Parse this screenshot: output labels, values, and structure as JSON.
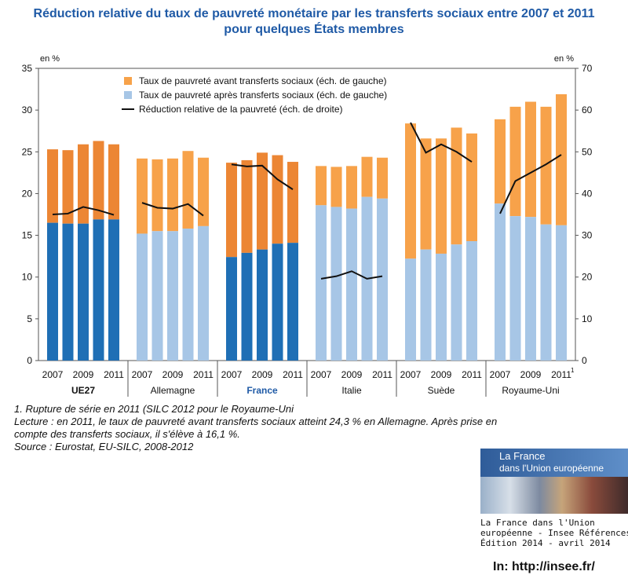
{
  "chart_data": {
    "type": "bar+line",
    "title_line1": "Réduction relative du taux de pauvreté monétaire par les transferts sociaux entre 2007 et 2011",
    "title_line2": "pour quelques États membres",
    "y_left_unit": "en %",
    "y_right_unit": "en %",
    "y_left_range": [
      0,
      35
    ],
    "y_right_range": [
      0,
      70
    ],
    "y_left_ticks": [
      "0",
      "5",
      "10",
      "15",
      "20",
      "25",
      "30",
      "35"
    ],
    "y_right_ticks": [
      "0",
      "10",
      "20",
      "30",
      "40",
      "50",
      "60",
      "70"
    ],
    "grid": false,
    "legend_position": "top-left",
    "legend": [
      {
        "label": "Taux de pauvreté avant transferts sociaux (éch. de gauche)",
        "color": "#f7a24a"
      },
      {
        "label": "Taux de pauvreté après transferts sociaux (éch. de gauche)",
        "color": "#a7c6e6"
      },
      {
        "label": "Réduction relative de la pauvreté (éch. de droite)",
        "color": "#111111"
      }
    ],
    "years": [
      "2007",
      "2008",
      "2009",
      "2010",
      "2011"
    ],
    "tick_years": [
      "2007",
      "2009",
      "2011"
    ],
    "groups": [
      {
        "name": "UE27",
        "before": [
          25.3,
          25.2,
          25.9,
          26.3,
          25.9
        ],
        "after": [
          16.5,
          16.4,
          16.4,
          16.9,
          16.9
        ],
        "reduction": [
          35,
          35.2,
          36.8,
          36,
          34.9
        ],
        "before_color": "#ec8634",
        "after_color": "#1f6fb5",
        "bold": true,
        "label_color": "#111111"
      },
      {
        "name": "Allemagne",
        "before": [
          24.2,
          24.1,
          24.2,
          25.1,
          24.3
        ],
        "after": [
          15.2,
          15.5,
          15.5,
          15.8,
          16.1
        ],
        "reduction": [
          37.8,
          36.6,
          36.4,
          37.5,
          34.7
        ],
        "before_color": "#f7a24a",
        "after_color": "#a7c6e6",
        "bold": false,
        "label_color": "#111111"
      },
      {
        "name": "France",
        "before": [
          23.7,
          24,
          24.9,
          24.6,
          23.8
        ],
        "after": [
          12.4,
          12.9,
          13.3,
          14,
          14.1
        ],
        "reduction": [
          47,
          46.5,
          46.7,
          43.4,
          41
        ],
        "before_color": "#ec8634",
        "after_color": "#1f6fb5",
        "bold": true,
        "label_color": "#1f5aa6"
      },
      {
        "name": "Italie",
        "before": [
          23.3,
          23.2,
          23.3,
          24.4,
          24.3
        ],
        "after": [
          18.6,
          18.4,
          18.2,
          19.6,
          19.4
        ],
        "reduction": [
          19.6,
          20.2,
          21.4,
          19.6,
          20.2
        ],
        "before_color": "#f7a24a",
        "after_color": "#a7c6e6",
        "bold": false,
        "label_color": "#111111"
      },
      {
        "name": "Suède",
        "before": [
          28.4,
          26.6,
          26.6,
          27.9,
          27.2
        ],
        "after": [
          12.2,
          13.3,
          12.8,
          13.9,
          14.3
        ],
        "reduction": [
          57,
          49.8,
          51.8,
          50,
          47.6
        ],
        "before_color": "#f7a24a",
        "after_color": "#a7c6e6",
        "bold": false,
        "label_color": "#111111"
      },
      {
        "name": "Royaume-Uni",
        "before": [
          28.9,
          30.4,
          31,
          30.4,
          31.9
        ],
        "after": [
          18.8,
          17.3,
          17.2,
          16.3,
          16.2
        ],
        "reduction": [
          35.2,
          43,
          45,
          47,
          49.3
        ],
        "before_color": "#f7a24a",
        "after_color": "#a7c6e6",
        "bold": false,
        "label_color": "#111111"
      }
    ],
    "footnote_marker": "1"
  },
  "notes": {
    "line1": "1. Rupture de série en 2011 (SILC 2012 pour le Royaume-Uni",
    "line2": "Lecture : en 2011, le taux de pauvreté avant transferts sociaux atteint 24,3 % en Allemagne. Après prise en",
    "line3": "compte des transferts sociaux, il s'élève à 16,1 %.",
    "line4": "Source : Eurostat, EU-SILC, 2008-2012"
  },
  "cover": {
    "line1": "La France",
    "line2": "dans l'Union européenne"
  },
  "reference": {
    "line1": "La France dans l'Union",
    "line2": "européenne - Insee Références",
    "line3": "Édition 2014 - avril 2014"
  },
  "source_url": "In: http://insee.fr/"
}
